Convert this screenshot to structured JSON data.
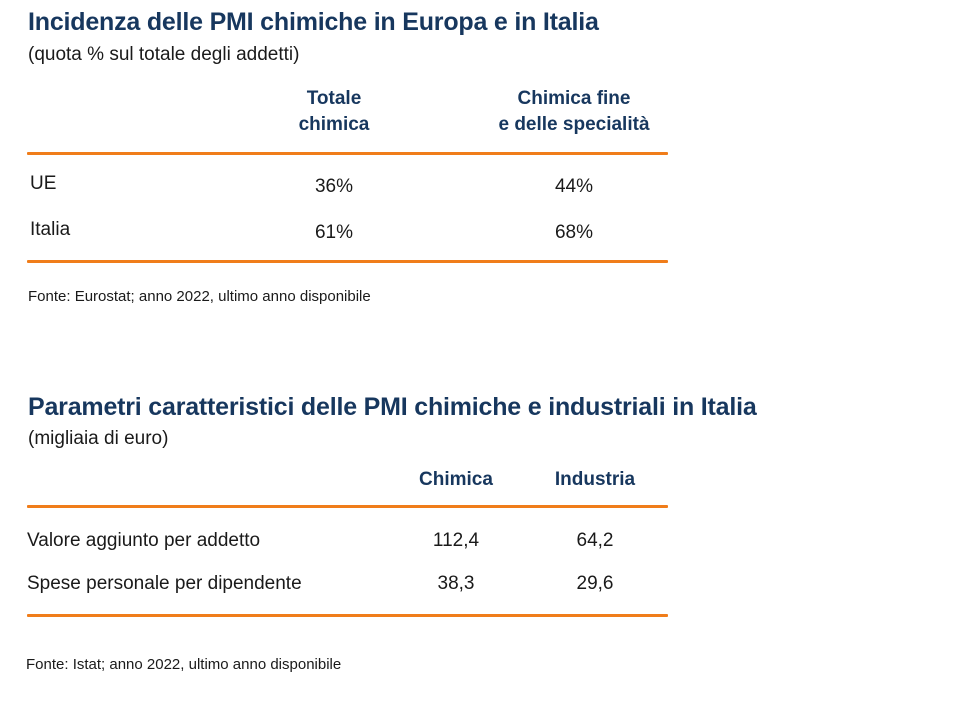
{
  "colors": {
    "title": "#17375e",
    "rule": "#f07d1a",
    "text": "#1a1a1a"
  },
  "table1": {
    "title": "Incidenza delle PMI chimiche in Europa e in Italia",
    "subtitle": "(quota % sul totale degli addetti)",
    "columns": [
      {
        "line1": "Totale",
        "line2": "chimica"
      },
      {
        "line1": "Chimica fine",
        "line2": "e delle specialità"
      }
    ],
    "rows": [
      {
        "label": "UE",
        "values": [
          "36%",
          "44%"
        ]
      },
      {
        "label": "Italia",
        "values": [
          "61%",
          "68%"
        ]
      }
    ],
    "source": "Fonte: Eurostat; anno 2022, ultimo anno disponibile"
  },
  "table2": {
    "title": "Parametri caratteristici delle PMI chimiche e industriali in Italia",
    "subtitle": "(migliaia di euro)",
    "columns": [
      "Chimica",
      "Industria"
    ],
    "rows": [
      {
        "label": "Valore aggiunto per addetto",
        "values": [
          "112,4",
          "64,2"
        ]
      },
      {
        "label": "Spese personale per dipendente",
        "values": [
          "38,3",
          "29,6"
        ]
      }
    ],
    "source": "Fonte: Istat; anno 2022, ultimo anno disponibile"
  }
}
